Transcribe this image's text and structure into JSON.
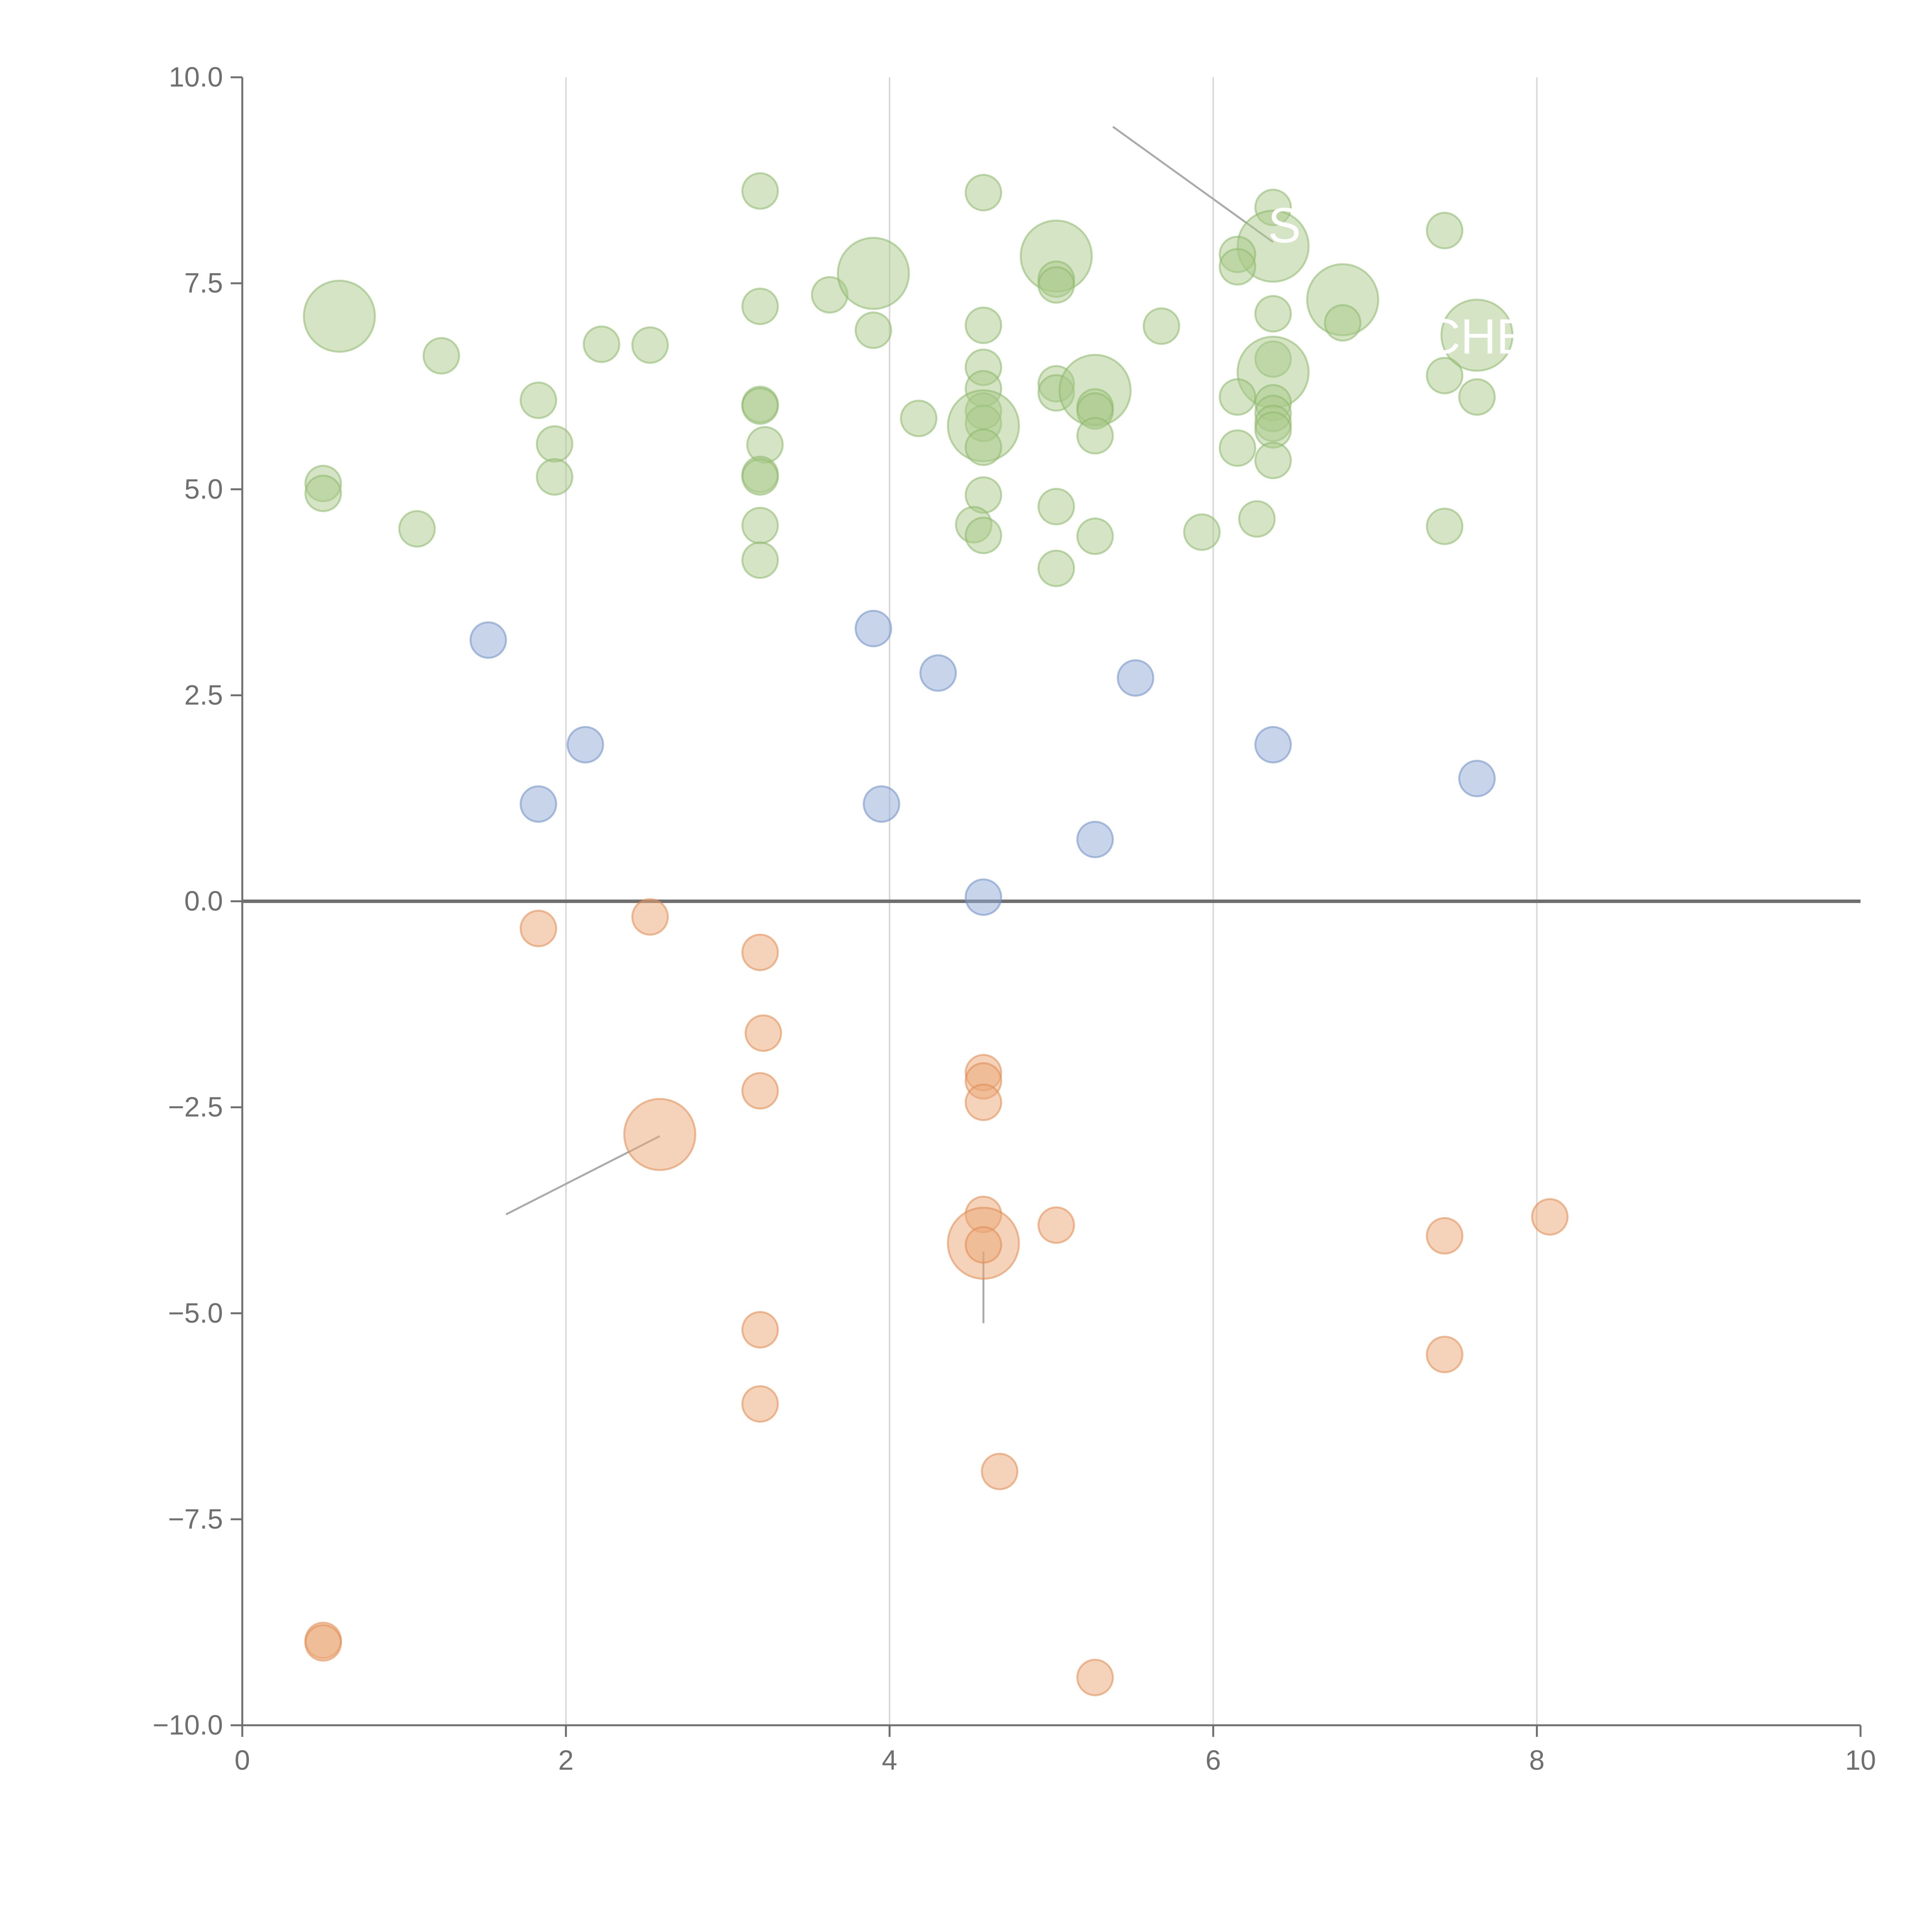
{
  "chart_data": {
    "type": "scatter",
    "title": "",
    "xlabel": "",
    "ylabel": "",
    "xlim": [
      0,
      10
    ],
    "ylim": [
      -10,
      10
    ],
    "grid": "vertical",
    "x_ticks": [
      0,
      2,
      4,
      6,
      8,
      10
    ],
    "y_ticks": [
      10,
      7.5,
      5,
      2.5,
      0,
      -2.5,
      -5,
      -7.5,
      -10
    ],
    "x_tick_labels": [
      "0",
      "2",
      "4",
      "6",
      "8",
      "10"
    ],
    "y_tick_labels": [
      "10.0",
      "7.5",
      "5.0",
      "2.5",
      "0.0",
      "−2.5",
      "−5.0",
      "−7.5",
      "−10.0"
    ],
    "colors": {
      "green_fill": "#a9c98a",
      "green_stroke": "#8cb86b",
      "blue_fill": "#8faad6",
      "blue_stroke": "#6f8fc4",
      "orange_fill": "#eba878",
      "orange_stroke": "#e08a4f"
    },
    "series": [
      {
        "name": "green",
        "color_key": "green",
        "points": [
          [
            0.6,
            7.1,
            2
          ],
          [
            1.23,
            6.62,
            1
          ],
          [
            0.5,
            5.07,
            1
          ],
          [
            0.5,
            4.95,
            1
          ],
          [
            1.08,
            4.52,
            1
          ],
          [
            1.83,
            6.08,
            1
          ],
          [
            1.93,
            5.55,
            1
          ],
          [
            1.93,
            5.15,
            1
          ],
          [
            2.22,
            6.76,
            1
          ],
          [
            2.52,
            6.75,
            1
          ],
          [
            3.2,
            8.62,
            1
          ],
          [
            3.2,
            7.22,
            1
          ],
          [
            3.2,
            6.03,
            1
          ],
          [
            3.2,
            6.01,
            1
          ],
          [
            3.23,
            5.54,
            1
          ],
          [
            3.2,
            5.18,
            1
          ],
          [
            3.2,
            5.15,
            1
          ],
          [
            3.2,
            4.56,
            1
          ],
          [
            3.2,
            4.14,
            1
          ],
          [
            3.63,
            7.36,
            1
          ],
          [
            3.9,
            7.62,
            2
          ],
          [
            3.9,
            6.93,
            1
          ],
          [
            4.18,
            5.86,
            1
          ],
          [
            4.58,
            8.6,
            1
          ],
          [
            4.58,
            6.99,
            1
          ],
          [
            4.58,
            6.48,
            1
          ],
          [
            4.58,
            6.22,
            1
          ],
          [
            4.58,
            5.95,
            1
          ],
          [
            4.58,
            5.8,
            1
          ],
          [
            4.58,
            5.77,
            2
          ],
          [
            4.58,
            5.51,
            1
          ],
          [
            4.58,
            4.93,
            1
          ],
          [
            4.52,
            4.57,
            1
          ],
          [
            4.58,
            4.44,
            1
          ],
          [
            5.03,
            7.83,
            2
          ],
          [
            5.03,
            7.55,
            1
          ],
          [
            5.03,
            7.48,
            1
          ],
          [
            5.03,
            6.28,
            1
          ],
          [
            5.03,
            6.17,
            1
          ],
          [
            5.27,
            6.2,
            2
          ],
          [
            5.27,
            6.0,
            1
          ],
          [
            5.27,
            5.95,
            1
          ],
          [
            5.27,
            5.65,
            1
          ],
          [
            5.03,
            4.79,
            1
          ],
          [
            5.27,
            4.43,
            1
          ],
          [
            5.03,
            4.04,
            1
          ],
          [
            5.68,
            6.98,
            1
          ],
          [
            5.93,
            4.48,
            1
          ],
          [
            6.37,
            8.42,
            1
          ],
          [
            6.37,
            7.95,
            2
          ],
          [
            6.15,
            7.85,
            1
          ],
          [
            6.15,
            7.7,
            1
          ],
          [
            6.37,
            7.13,
            1
          ],
          [
            6.37,
            6.58,
            1
          ],
          [
            6.37,
            6.42,
            2
          ],
          [
            6.15,
            6.12,
            1
          ],
          [
            6.37,
            6.05,
            1
          ],
          [
            6.37,
            5.92,
            1
          ],
          [
            6.37,
            5.8,
            1
          ],
          [
            6.37,
            5.72,
            1
          ],
          [
            6.15,
            5.5,
            1
          ],
          [
            6.37,
            5.35,
            1
          ],
          [
            6.27,
            4.64,
            1
          ],
          [
            6.8,
            7.3,
            2
          ],
          [
            6.8,
            7.02,
            1
          ],
          [
            7.43,
            8.14,
            1
          ],
          [
            7.43,
            6.38,
            1
          ],
          [
            7.63,
            6.87,
            2
          ],
          [
            7.63,
            6.12,
            1
          ],
          [
            7.43,
            4.55,
            1
          ]
        ]
      },
      {
        "name": "blue",
        "color_key": "blue",
        "points": [
          [
            1.52,
            3.17,
            1
          ],
          [
            2.12,
            1.9,
            1
          ],
          [
            1.83,
            1.18,
            1
          ],
          [
            3.9,
            3.31,
            1
          ],
          [
            3.95,
            1.18,
            1
          ],
          [
            4.3,
            2.77,
            1
          ],
          [
            4.58,
            0.05,
            1
          ],
          [
            5.27,
            0.75,
            1
          ],
          [
            5.52,
            2.71,
            1
          ],
          [
            6.37,
            1.9,
            1
          ],
          [
            7.63,
            1.49,
            1
          ]
        ]
      },
      {
        "name": "orange",
        "color_key": "orange",
        "points": [
          [
            1.83,
            -0.33,
            1
          ],
          [
            2.52,
            -0.19,
            1
          ],
          [
            3.2,
            -0.62,
            1
          ],
          [
            3.22,
            -1.6,
            1
          ],
          [
            3.2,
            -2.3,
            1
          ],
          [
            2.58,
            -2.83,
            2
          ],
          [
            4.58,
            -2.08,
            1
          ],
          [
            4.58,
            -2.18,
            1
          ],
          [
            4.58,
            -2.44,
            1
          ],
          [
            4.58,
            -3.8,
            1
          ],
          [
            4.58,
            -4.15,
            2
          ],
          [
            4.58,
            -4.17,
            1
          ],
          [
            5.03,
            -3.93,
            1
          ],
          [
            3.2,
            -5.2,
            1
          ],
          [
            3.2,
            -6.1,
            1
          ],
          [
            4.68,
            -6.92,
            1
          ],
          [
            0.5,
            -8.97,
            1
          ],
          [
            0.5,
            -9.0,
            1
          ],
          [
            5.27,
            -9.42,
            1
          ],
          [
            7.43,
            -4.06,
            1
          ],
          [
            7.43,
            -5.5,
            1
          ],
          [
            8.08,
            -3.83,
            1
          ]
        ]
      }
    ],
    "annotations": [
      {
        "text": "S",
        "x": 6.44,
        "y": 8.2
      },
      {
        "text": "CHE",
        "x": 7.63,
        "y": 6.85
      }
    ]
  }
}
